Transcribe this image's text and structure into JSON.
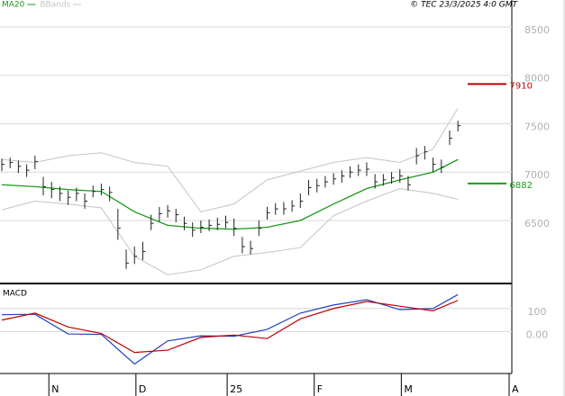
{
  "chart_data": [
    {
      "type": "ohlc",
      "source": "© TEC 23/3/2025 4:0 GMT",
      "color": "#222222",
      "x": [
        0,
        2,
        4,
        6,
        8,
        10,
        12,
        14,
        16,
        18,
        20,
        22,
        24,
        26,
        28,
        30,
        32,
        34,
        36,
        38,
        40,
        42,
        44,
        46,
        48,
        50,
        52,
        54,
        56,
        58,
        60,
        62,
        64,
        66,
        68,
        70,
        72,
        74,
        76,
        78,
        80,
        82,
        84,
        86,
        88,
        90,
        92,
        94,
        96,
        98,
        100,
        102,
        104,
        106,
        108,
        110
      ],
      "high": [
        7140,
        7150,
        7120,
        7080,
        7170,
        6950,
        6900,
        6850,
        6810,
        6840,
        6780,
        6860,
        6880,
        6850,
        6620,
        6200,
        6230,
        6280,
        6560,
        6640,
        6660,
        6620,
        6540,
        6480,
        6500,
        6510,
        6530,
        6550,
        6520,
        6330,
        6290,
        6500,
        6640,
        6680,
        6690,
        6710,
        6780,
        6920,
        6930,
        6960,
        6990,
        7020,
        7060,
        7080,
        7100,
        6980,
        6980,
        7000,
        7030,
        6960,
        7250,
        7270,
        7150,
        7130,
        7430,
        7530
      ],
      "low": [
        7010,
        7040,
        6990,
        6950,
        7030,
        6760,
        6730,
        6700,
        6660,
        6700,
        6620,
        6740,
        6760,
        6700,
        6300,
        6000,
        6050,
        6090,
        6400,
        6490,
        6530,
        6480,
        6400,
        6330,
        6370,
        6390,
        6400,
        6420,
        6340,
        6160,
        6150,
        6340,
        6510,
        6560,
        6560,
        6590,
        6630,
        6760,
        6790,
        6840,
        6870,
        6890,
        6940,
        6960,
        6960,
        6830,
        6860,
        6880,
        6890,
        6810,
        7080,
        7130,
        7000,
        6990,
        7280,
        7420
      ],
      "close": [
        7080,
        7100,
        7060,
        7020,
        7110,
        6850,
        6820,
        6780,
        6740,
        6780,
        6700,
        6800,
        6820,
        6790,
        6420,
        6060,
        6130,
        6180,
        6470,
        6570,
        6600,
        6560,
        6470,
        6400,
        6430,
        6450,
        6460,
        6480,
        6420,
        6230,
        6210,
        6420,
        6580,
        6620,
        6620,
        6650,
        6700,
        6840,
        6860,
        6900,
        6930,
        6960,
        7000,
        7020,
        7030,
        6900,
        6920,
        6940,
        6960,
        6870,
        7170,
        7210,
        7080,
        7050,
        7350,
        7480
      ],
      "series": [
        {
          "name": "MA20",
          "color": "#1a9a1a",
          "x": [
            0,
            8,
            16,
            24,
            32,
            40,
            48,
            56,
            64,
            72,
            80,
            88,
            96,
            104,
            110
          ],
          "values": [
            6870,
            6850,
            6820,
            6800,
            6590,
            6450,
            6420,
            6410,
            6430,
            6500,
            6670,
            6830,
            6920,
            7000,
            7130
          ]
        },
        {
          "name": "BBands",
          "color": "#c4c4c4",
          "x": [
            0,
            8,
            16,
            24,
            32,
            40,
            48,
            56,
            64,
            72,
            80,
            88,
            96,
            104,
            110
          ],
          "upper": [
            7130,
            7100,
            7170,
            7200,
            7100,
            7060,
            6590,
            6670,
            6920,
            7010,
            7100,
            7150,
            7100,
            7240,
            7660
          ],
          "lower": [
            6610,
            6700,
            6670,
            6630,
            6130,
            5940,
            5990,
            6130,
            6170,
            6220,
            6550,
            6700,
            6830,
            6780,
            6720
          ]
        }
      ],
      "levels": [
        {
          "value": 7910,
          "color": "#c00000"
        },
        {
          "value": 6882,
          "color": "#1a9a1a"
        }
      ],
      "xlim": [
        0,
        123
      ],
      "ylim": [
        5858,
        8779
      ],
      "yticks": [
        6500,
        7000,
        7500,
        8000,
        8500
      ],
      "grid": true
    },
    {
      "type": "line",
      "title": "MACD",
      "x": [
        0,
        8,
        16,
        24,
        32,
        40,
        48,
        56,
        64,
        72,
        80,
        88,
        96,
        104,
        110
      ],
      "series": [
        {
          "color": "#2040c0",
          "values": [
            73,
            75,
            -10,
            -12,
            -140,
            -40,
            -18,
            -20,
            10,
            80,
            115,
            138,
            95,
            100,
            160
          ]
        },
        {
          "color": "#c00000",
          "values": [
            50,
            80,
            20,
            -8,
            -90,
            -80,
            -25,
            -15,
            -30,
            55,
            100,
            130,
            110,
            90,
            135
          ]
        }
      ],
      "xlim": [
        0,
        123
      ],
      "ylim": [
        -177,
        204
      ],
      "yticks": [
        {
          "value": 0,
          "label": "0.00"
        },
        100
      ],
      "xticks": [
        {
          "value": 12,
          "label": "N"
        },
        {
          "value": 33,
          "label": "D"
        },
        {
          "value": 55,
          "label": "25"
        },
        {
          "value": 76,
          "label": "F"
        },
        {
          "value": 97,
          "label": "M"
        },
        {
          "value": 123,
          "label": "A"
        }
      ],
      "grid": true
    }
  ]
}
